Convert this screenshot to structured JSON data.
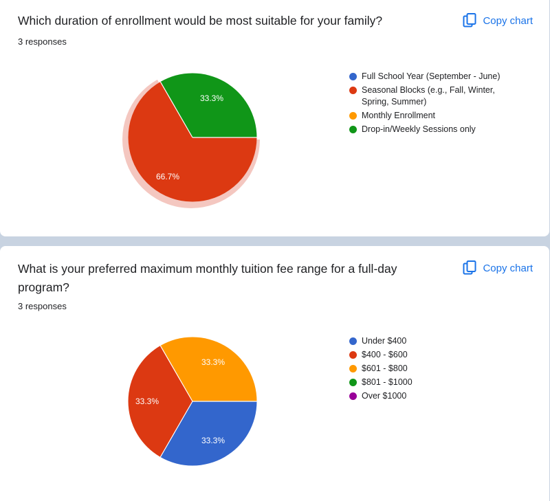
{
  "colors": {
    "blue": "#3366cc",
    "red": "#dc3912",
    "orange": "#ff9900",
    "green": "#109618",
    "purple": "#990099",
    "highlight": "#f4c7c0",
    "link": "#1a73e8"
  },
  "copy_icon": "copy-icon",
  "charts": [
    {
      "question": "Which duration of enrollment would be most suitable for your family?",
      "responses": "3 responses",
      "copy_label": "Copy chart",
      "legend": [
        {
          "label": "Full School Year (September - June)",
          "color": "#3366cc"
        },
        {
          "label": "Seasonal Blocks (e.g., Fall, Winter, Spring, Summer)",
          "color": "#dc3912"
        },
        {
          "label": "Monthly Enrollment",
          "color": "#ff9900"
        },
        {
          "label": "Drop-in/Weekly Sessions only",
          "color": "#109618"
        }
      ],
      "slice_labels": {
        "green": "33.3%",
        "red": "66.7%"
      }
    },
    {
      "question": "What is your preferred maximum monthly tuition fee range for a full-day program?",
      "responses": "3 responses",
      "copy_label": "Copy chart",
      "legend": [
        {
          "label": "Under $400",
          "color": "#3366cc"
        },
        {
          "label": "$400 - $600",
          "color": "#dc3912"
        },
        {
          "label": "$601 - $800",
          "color": "#ff9900"
        },
        {
          "label": "$801 - $1000",
          "color": "#109618"
        },
        {
          "label": "Over $1000",
          "color": "#990099"
        }
      ],
      "slice_labels": {
        "orange": "33.3%",
        "red": "33.3%",
        "blue": "33.3%"
      }
    }
  ],
  "chart_data": [
    {
      "type": "pie",
      "title": "Which duration of enrollment would be most suitable for your family?",
      "categories": [
        "Full School Year (September - June)",
        "Seasonal Blocks (e.g., Fall, Winter, Spring, Summer)",
        "Monthly Enrollment",
        "Drop-in/Weekly Sessions only"
      ],
      "values": [
        0,
        66.7,
        0,
        33.3
      ],
      "legend": "right"
    },
    {
      "type": "pie",
      "title": "What is your preferred maximum monthly tuition fee range for a full-day program?",
      "categories": [
        "Under $400",
        "$400 - $600",
        "$601 - $800",
        "$801 - $1000",
        "Over $1000"
      ],
      "values": [
        33.3,
        33.3,
        33.3,
        0,
        0
      ],
      "legend": "right"
    }
  ]
}
